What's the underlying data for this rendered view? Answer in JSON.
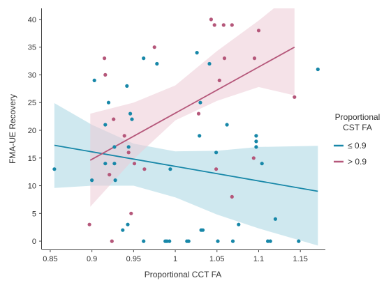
{
  "chart_data": {
    "type": "scatter",
    "title": "",
    "xlabel": "Proportional CCT FA",
    "ylabel": "FMA-UE Recovery",
    "xlim": [
      0.84,
      1.18
    ],
    "ylim": [
      -1.5,
      42
    ],
    "x_ticks": [
      0.85,
      0.9,
      0.95,
      1.0,
      1.05,
      1.1,
      1.15
    ],
    "x_tick_labels": [
      "0.85",
      "0.9",
      "0.95",
      "1",
      "1.05",
      "1.1",
      "1.15"
    ],
    "y_ticks": [
      0,
      5,
      10,
      15,
      20,
      25,
      30,
      35,
      40
    ],
    "y_tick_labels": [
      "0",
      "5",
      "10",
      "15",
      "20",
      "25",
      "30",
      "35",
      "40"
    ],
    "grid": false,
    "legend": {
      "title": "Proportional\nCST FA",
      "position": "right",
      "entries": [
        {
          "label": "≤ 0.9",
          "color": "#1787a8"
        },
        {
          "label": "> 0.9",
          "color": "#b5577a"
        }
      ]
    },
    "series": [
      {
        "name": "≤ 0.9",
        "color": "#1787a8",
        "band_color": "#a8d5e2",
        "points": [
          [
            0.855,
            13
          ],
          [
            0.9,
            11
          ],
          [
            0.903,
            29
          ],
          [
            0.916,
            21
          ],
          [
            0.916,
            14
          ],
          [
            0.92,
            25
          ],
          [
            0.927,
            17
          ],
          [
            0.927,
            14
          ],
          [
            0.928,
            11
          ],
          [
            0.937,
            2
          ],
          [
            0.942,
            28
          ],
          [
            0.943,
            3
          ],
          [
            0.944,
            17
          ],
          [
            0.946,
            23
          ],
          [
            0.948,
            22
          ],
          [
            0.962,
            33
          ],
          [
            0.962,
            0
          ],
          [
            0.978,
            32
          ],
          [
            0.988,
            0
          ],
          [
            0.99,
            0
          ],
          [
            0.993,
            0
          ],
          [
            0.994,
            13
          ],
          [
            1.014,
            0
          ],
          [
            1.016,
            0
          ],
          [
            1.026,
            34
          ],
          [
            1.029,
            19
          ],
          [
            1.03,
            25
          ],
          [
            1.031,
            2
          ],
          [
            1.033,
            2
          ],
          [
            1.041,
            32
          ],
          [
            1.049,
            16
          ],
          [
            1.051,
            0
          ],
          [
            1.062,
            21
          ],
          [
            1.069,
            0
          ],
          [
            1.076,
            3
          ],
          [
            1.097,
            19
          ],
          [
            1.097,
            18
          ],
          [
            1.097,
            17
          ],
          [
            1.104,
            14
          ],
          [
            1.111,
            0
          ],
          [
            1.114,
            0
          ],
          [
            1.12,
            4
          ],
          [
            1.148,
            0
          ],
          [
            1.171,
            31
          ]
        ],
        "fit": {
          "x": [
            0.855,
            1.171
          ],
          "y": [
            17.3,
            9.0
          ]
        },
        "ci_upper": [
          [
            0.855,
            24.9
          ],
          [
            0.9,
            21.0
          ],
          [
            0.95,
            17.6
          ],
          [
            1.0,
            16.2
          ],
          [
            1.05,
            16.3
          ],
          [
            1.1,
            17.0
          ],
          [
            1.171,
            17.2
          ]
        ],
        "ci_lower": [
          [
            0.855,
            9.6
          ],
          [
            0.9,
            10.0
          ],
          [
            0.95,
            10.0
          ],
          [
            1.0,
            7.9
          ],
          [
            1.05,
            4.8
          ],
          [
            1.1,
            2.3
          ],
          [
            1.171,
            -0.8
          ]
        ]
      },
      {
        "name": "> 0.9",
        "color": "#b5577a",
        "band_color": "#eccad5",
        "points": [
          [
            0.897,
            3
          ],
          [
            0.915,
            33
          ],
          [
            0.916,
            30
          ],
          [
            0.921,
            12
          ],
          [
            0.924,
            0
          ],
          [
            0.926,
            22
          ],
          [
            0.939,
            19
          ],
          [
            0.944,
            16
          ],
          [
            0.947,
            5
          ],
          [
            0.951,
            14
          ],
          [
            0.963,
            13
          ],
          [
            0.975,
            35
          ],
          [
            1.028,
            23
          ],
          [
            1.043,
            40
          ],
          [
            1.047,
            39
          ],
          [
            1.049,
            13
          ],
          [
            1.053,
            29
          ],
          [
            1.058,
            39
          ],
          [
            1.059,
            33
          ],
          [
            1.068,
            39
          ],
          [
            1.068,
            8
          ],
          [
            1.094,
            15
          ],
          [
            1.095,
            33
          ],
          [
            1.1,
            38
          ],
          [
            1.143,
            26
          ]
        ],
        "fit": {
          "x": [
            0.898,
            1.143
          ],
          "y": [
            14.6,
            35.0
          ]
        },
        "ci_upper": [
          [
            0.898,
            23.0
          ],
          [
            0.95,
            25.0
          ],
          [
            1.0,
            28.1
          ],
          [
            1.05,
            34.3
          ],
          [
            1.1,
            39.8
          ],
          [
            1.143,
            45.0
          ]
        ],
        "ci_lower": [
          [
            0.898,
            6.2
          ],
          [
            0.95,
            14.8
          ],
          [
            1.0,
            21.8
          ],
          [
            1.05,
            25.3
          ],
          [
            1.1,
            27.8
          ],
          [
            1.143,
            26.3
          ]
        ]
      }
    ]
  }
}
